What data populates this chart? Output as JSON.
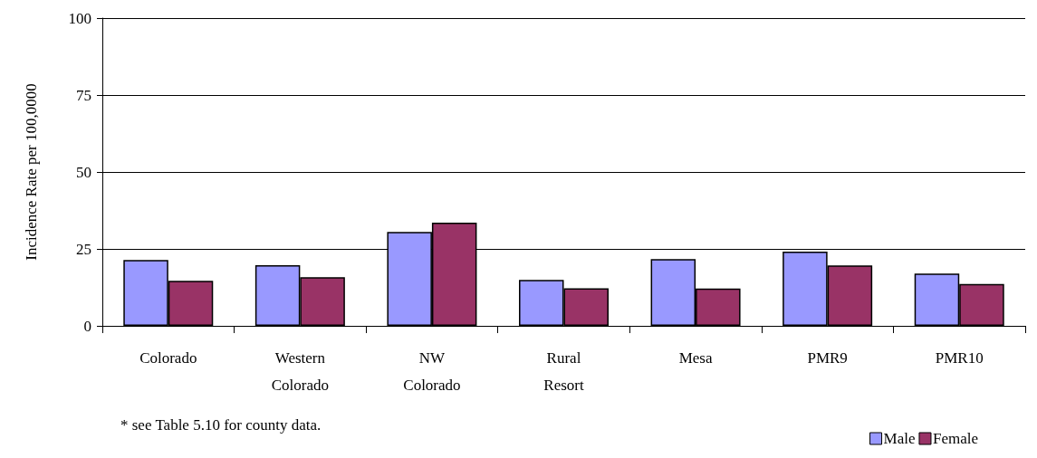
{
  "chart_data": {
    "type": "bar",
    "ylabel": "Incidence Rate per 100,0000",
    "categories": [
      "Colorado",
      "Western Colorado",
      "NW Colorado",
      "Rural Resort",
      "Mesa",
      "PMR9",
      "PMR10"
    ],
    "series": [
      {
        "name": "Male",
        "color": "#9999ff",
        "values": [
          21.4,
          19.7,
          30.5,
          14.9,
          21.7,
          24.1,
          17.0
        ]
      },
      {
        "name": "Female",
        "color": "#993366",
        "values": [
          14.6,
          15.8,
          33.5,
          12.2,
          12.1,
          19.6,
          13.6
        ]
      }
    ],
    "ylim": [
      0,
      100
    ],
    "yticks": [
      0,
      25,
      50,
      75,
      100
    ],
    "grid": "y",
    "legend": "bottom right",
    "annotations": [
      "* see Table 5.10 for county data."
    ]
  }
}
